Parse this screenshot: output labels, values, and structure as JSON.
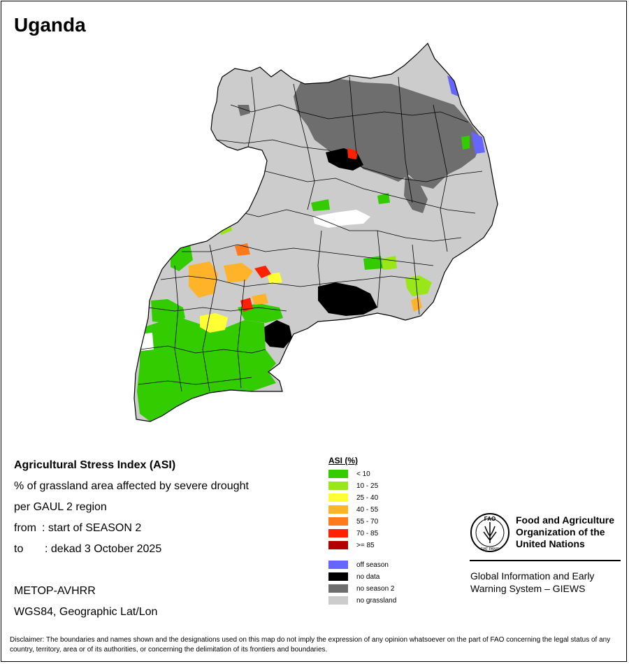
{
  "title": "Uganda",
  "info": {
    "heading": "Agricultural Stress Index (ASI)",
    "line1": "% of grassland area affected by severe drought",
    "line2": "per GAUL 2 region",
    "from_label": "from",
    "from_value": ": start of SEASON 2",
    "to_label": "to",
    "to_value": ": dekad 3 October 2025",
    "sensor": "METOP-AVHRR",
    "projection": "WGS84, Geographic Lat/Lon"
  },
  "legend": {
    "title": "ASI (%)",
    "classes": [
      {
        "label": "< 10",
        "color": "#33cc00"
      },
      {
        "label": "10 - 25",
        "color": "#99e619"
      },
      {
        "label": "25 - 40",
        "color": "#ffff33"
      },
      {
        "label": "40 - 55",
        "color": "#ffb329"
      },
      {
        "label": "55 - 70",
        "color": "#ff7a1a"
      },
      {
        "label": "70 - 85",
        "color": "#ff2200"
      },
      {
        "label": ">= 85",
        "color": "#b30000"
      }
    ],
    "other": [
      {
        "label": "off season",
        "color": "#6666ff"
      },
      {
        "label": "no data",
        "color": "#000000"
      },
      {
        "label": "no season 2",
        "color": "#6e6e6e"
      },
      {
        "label": "no grassland",
        "color": "#cccccc"
      }
    ]
  },
  "org": {
    "name_line1": "Food and Agriculture",
    "name_line2": "Organization of the",
    "name_line3": "United Nations",
    "logo_letters": "FAO",
    "logo_motto": "FIAT PANIS",
    "giews_line1": "Global Information and Early",
    "giews_line2": "Warning System – GIEWS"
  },
  "disclaimer": "Disclaimer: The boundaries and names shown and the designations used on this map do not imply the expression of any opinion whatsoever on the part of FAO concerning the legal status of any country, territory, area or of its authorities, or concerning the delimitation of its frontiers and boundaries."
}
